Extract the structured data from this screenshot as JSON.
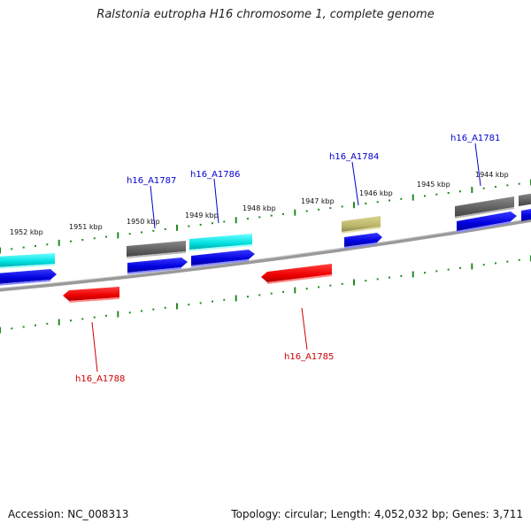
{
  "title": "Ralstonia eutropha H16 chromosome 1, complete genome",
  "footer": {
    "accession": "Accession: NC_008313",
    "topology": "Topology: circular; Length: 4,052,032 bp; Genes: 3,711"
  },
  "scale_labels": [
    "1952 kbp",
    "1951 kbp",
    "1950 kbp",
    "1949 kbp",
    "1948 kbp",
    "1947 kbp",
    "1946 kbp",
    "1945 kbp",
    "1944 kbp"
  ],
  "gene_labels": [
    {
      "name": "h16_A1787",
      "color": "#0000cc"
    },
    {
      "name": "h16_A1786",
      "color": "#0000cc"
    },
    {
      "name": "h16_A1784",
      "color": "#0000cc"
    },
    {
      "name": "h16_A1781",
      "color": "#0000cc"
    },
    {
      "name": "h16_A1788",
      "color": "#cc0000"
    },
    {
      "name": "h16_A1785",
      "color": "#cc0000"
    }
  ],
  "colors": {
    "cds": "#0000ee",
    "cds_reverse": "#ee0000",
    "gene_gray": "#666666",
    "gene_cyan": "#00e5e5",
    "gene_khaki": "#bdb76b",
    "tick": "#228b22",
    "backbone": "#888888"
  }
}
